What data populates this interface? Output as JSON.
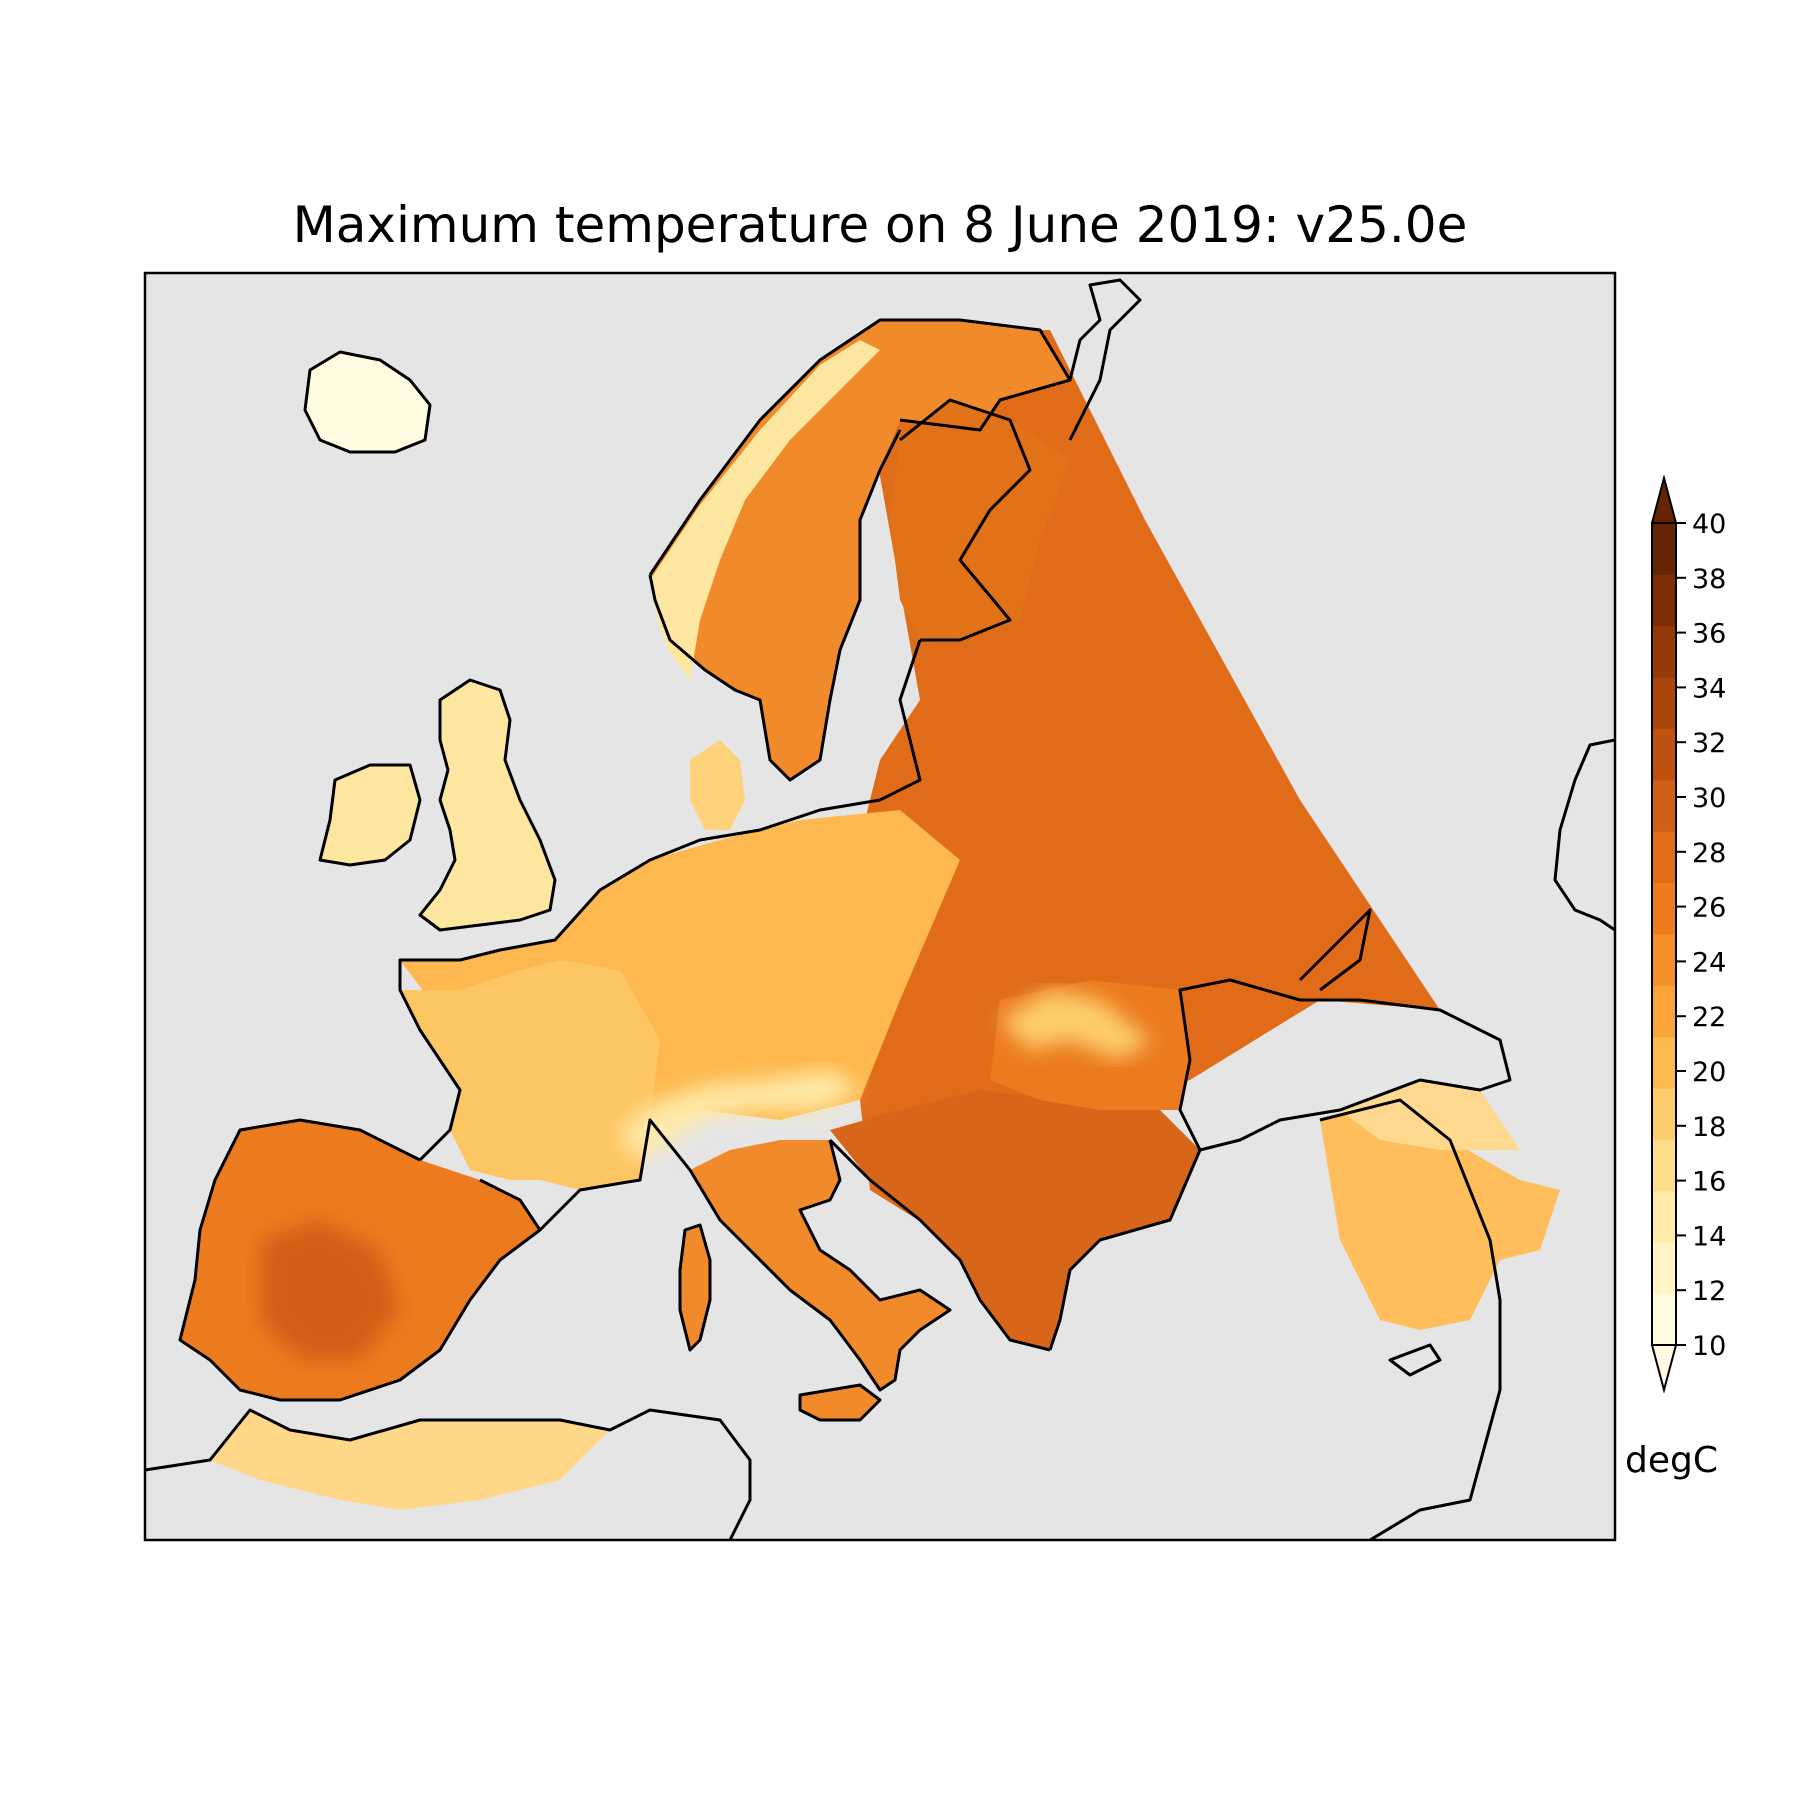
{
  "title": "Maximum temperature on 8 June 2019: v25.0e",
  "colorbar": {
    "units": "degC",
    "min": 10,
    "max": 40,
    "step": 2,
    "extend": "both",
    "tick_labels": [
      "10",
      "12",
      "14",
      "16",
      "18",
      "20",
      "22",
      "24",
      "26",
      "28",
      "30",
      "32",
      "34",
      "36",
      "38",
      "40"
    ],
    "colors": [
      "#fffbe0",
      "#fff4c6",
      "#ffeaa8",
      "#fedd8a",
      "#fdcd6c",
      "#fdb94f",
      "#faa43a",
      "#f58f2a",
      "#ec7b20",
      "#e06c1a",
      "#d15f15",
      "#c05211",
      "#ab450c",
      "#953908",
      "#7d2e06",
      "#652404"
    ]
  },
  "map": {
    "region": "Europe",
    "ocean_color": "#e5e5e5",
    "coastline_color": "#000000"
  }
}
